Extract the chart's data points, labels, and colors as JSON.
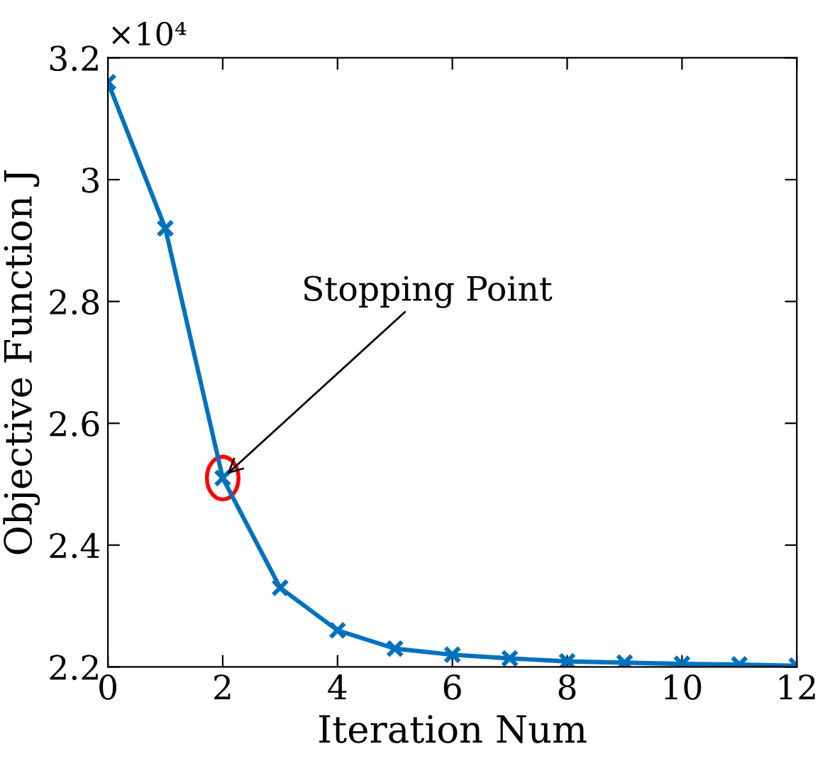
{
  "chart_data": {
    "type": "line",
    "xlabel": "Iteration Num",
    "ylabel": "Objective Function J",
    "x": [
      0,
      1,
      2,
      3,
      4,
      5,
      6,
      7,
      8,
      9,
      10,
      11,
      12
    ],
    "series": [
      {
        "color": "#0072bd",
        "values": [
          3.16,
          2.92,
          2.51,
          2.33,
          2.26,
          2.23,
          2.22,
          2.214,
          2.209,
          2.207,
          2.205,
          2.204,
          2.202
        ]
      }
    ],
    "xlim": [
      0,
      12
    ],
    "xticks": [
      0,
      2,
      4,
      6,
      8,
      10,
      12
    ],
    "ylim": [
      2.2,
      3.2
    ],
    "yticks": [
      2.2,
      2.4,
      2.6,
      2.8,
      3,
      3.2
    ],
    "marker": "cross",
    "line_style": "solid",
    "grid": false,
    "legend": false,
    "annotations": [
      "×10⁴",
      {
        "text": "Stopping Point",
        "x": 2,
        "y": 2.51
      }
    ]
  }
}
